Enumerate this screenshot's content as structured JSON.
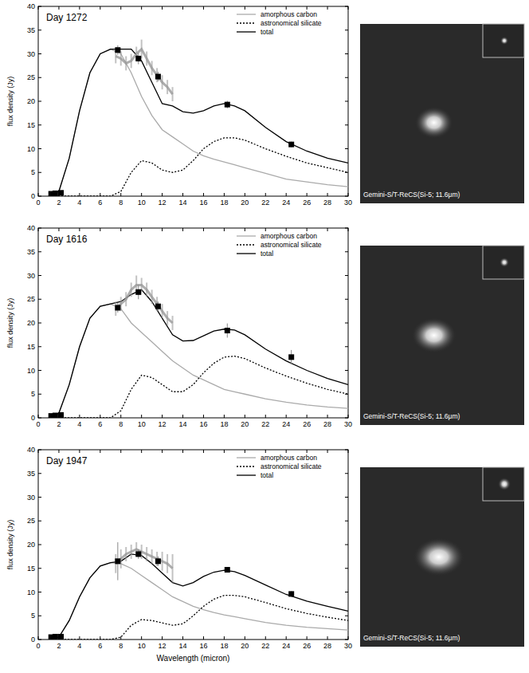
{
  "chart_data": [
    {
      "type": "line",
      "title": "Day 1272",
      "y_label": "flux density (Jy)",
      "xlim": [
        0,
        30
      ],
      "xticks": [
        0,
        2,
        4,
        6,
        8,
        10,
        12,
        14,
        16,
        18,
        20,
        22,
        24,
        26,
        28,
        30
      ],
      "ylim": [
        0,
        40
      ],
      "yticks": [
        0,
        5,
        10,
        15,
        20,
        25,
        30,
        35,
        40
      ],
      "legend": "upper right",
      "annotations": [
        "Gemini-S/T-ReCS(Si-5; 11.6μm)"
      ],
      "series": [
        {
          "name": "amorphous carbon",
          "type": "line",
          "color": "#aaaaaa",
          "line_style": "solid",
          "x": [
            1,
            2,
            3,
            4,
            5,
            6,
            7,
            8,
            9,
            10,
            11,
            12,
            13,
            14,
            15,
            16,
            17,
            18,
            19,
            20,
            22,
            24,
            26,
            28,
            30
          ],
          "values": [
            0,
            1,
            8,
            18,
            26,
            30,
            31,
            30,
            26,
            21,
            17,
            14,
            12.5,
            11,
            9.5,
            8.5,
            7.8,
            7.2,
            6.6,
            6,
            4.8,
            3.6,
            3,
            2.4,
            2
          ]
        },
        {
          "name": "astronomical silicate",
          "type": "line",
          "color": "#000000",
          "line_style": "dotted",
          "x": [
            1,
            2,
            3,
            4,
            5,
            6,
            7,
            8,
            9,
            10,
            11,
            12,
            13,
            14,
            15,
            16,
            17,
            18,
            19,
            20,
            22,
            24,
            26,
            28,
            30
          ],
          "values": [
            0,
            0,
            0,
            0,
            0,
            0,
            0,
            1,
            5,
            7.5,
            7,
            5.5,
            5,
            5.5,
            7.5,
            10,
            11.5,
            12.3,
            12.3,
            11.8,
            10,
            8.4,
            7,
            6,
            5
          ]
        },
        {
          "name": "total",
          "type": "line",
          "color": "#000000",
          "line_style": "solid",
          "x": [
            1,
            2,
            3,
            4,
            5,
            6,
            7,
            8,
            9,
            10,
            11,
            12,
            13,
            14,
            15,
            16,
            17,
            18,
            19,
            20,
            22,
            24,
            26,
            28,
            30
          ],
          "values": [
            0,
            1,
            8,
            18,
            26,
            30,
            31,
            31,
            31,
            28.5,
            24,
            19.5,
            19,
            17.8,
            17.5,
            18,
            19,
            19.5,
            19,
            18,
            14.5,
            11.5,
            9.5,
            8,
            7
          ]
        },
        {
          "type": "line",
          "color": "#999999",
          "line_style": "solid",
          "x": [
            7.5,
            8,
            8.5,
            9,
            9.5,
            10,
            10.5,
            11,
            11.5,
            12,
            12.5,
            13
          ],
          "values": [
            29.5,
            29,
            28,
            28.5,
            30,
            31,
            29,
            27,
            25.5,
            24,
            23,
            21.5
          ],
          "errors": [
            1.5,
            1.5,
            1.5,
            1.5,
            1.5,
            2,
            1.5,
            1.5,
            1.5,
            1.5,
            1.5,
            1.5
          ]
        },
        {
          "type": "scatter",
          "color": "#000000",
          "marker": "square",
          "x": [
            1.25,
            1.65,
            2.2,
            7.7,
            9.7,
            11.6,
            18.3,
            24.5
          ],
          "values": [
            0.5,
            0.6,
            0.7,
            30.8,
            29,
            25.2,
            19.3,
            10.9
          ],
          "errors": [
            0.1,
            0.1,
            0.1,
            1,
            1.2,
            1,
            0.8,
            0.6
          ]
        }
      ]
    },
    {
      "type": "line",
      "title": "Day 1616",
      "y_label": "flux density (Jy)",
      "xlim": [
        0,
        30
      ],
      "xticks": [
        0,
        2,
        4,
        6,
        8,
        10,
        12,
        14,
        16,
        18,
        20,
        22,
        24,
        26,
        28,
        30
      ],
      "ylim": [
        0,
        40
      ],
      "yticks": [
        0,
        5,
        10,
        15,
        20,
        25,
        30,
        35,
        40
      ],
      "legend": "upper right",
      "annotations": [
        "Gemini-S/T-ReCS(Si-5; 11.6μm)"
      ],
      "series": [
        {
          "name": "amorphous carbon",
          "type": "line",
          "color": "#aaaaaa",
          "line_style": "solid",
          "x": [
            1,
            2,
            3,
            4,
            5,
            6,
            7,
            8,
            9,
            10,
            11,
            12,
            13,
            14,
            15,
            16,
            17,
            18,
            19,
            20,
            22,
            24,
            26,
            28,
            30
          ],
          "values": [
            0,
            1,
            7,
            15,
            21,
            23.5,
            24,
            23,
            20,
            18,
            16,
            14,
            12,
            10.5,
            9,
            8,
            7,
            6,
            5.5,
            5,
            4,
            3.3,
            2.7,
            2.3,
            2
          ]
        },
        {
          "name": "astronomical silicate",
          "type": "line",
          "color": "#000000",
          "line_style": "dotted",
          "x": [
            1,
            2,
            3,
            4,
            5,
            6,
            7,
            8,
            9,
            10,
            11,
            12,
            13,
            14,
            15,
            16,
            17,
            18,
            19,
            20,
            22,
            24,
            26,
            28,
            30
          ],
          "values": [
            0,
            0,
            0,
            0,
            0,
            0,
            0,
            1.5,
            6,
            9,
            8.5,
            7,
            5.5,
            5.5,
            7,
            9.5,
            11.5,
            12.8,
            13,
            12.5,
            10.5,
            8.8,
            7.3,
            6,
            5
          ]
        },
        {
          "name": "total",
          "type": "line",
          "color": "#000000",
          "line_style": "solid",
          "x": [
            1,
            2,
            3,
            4,
            5,
            6,
            7,
            8,
            9,
            10,
            11,
            12,
            13,
            14,
            15,
            16,
            17,
            18,
            19,
            20,
            22,
            24,
            26,
            28,
            30
          ],
          "values": [
            0,
            1,
            7,
            15,
            21,
            23.5,
            24,
            24.5,
            26,
            27,
            24.5,
            21,
            17.5,
            16.2,
            16.3,
            17.3,
            18.3,
            18.7,
            18.5,
            17.5,
            14.5,
            12,
            10,
            8.3,
            7
          ]
        },
        {
          "type": "line",
          "color": "#999999",
          "line_style": "solid",
          "x": [
            7.5,
            8,
            8.5,
            9,
            9.5,
            10,
            10.5,
            11,
            11.5,
            12,
            12.5,
            13
          ],
          "values": [
            23,
            24,
            25,
            27,
            28,
            28,
            27,
            25.5,
            24,
            22.5,
            21,
            20
          ],
          "errors": [
            1.5,
            1.5,
            1.5,
            1.5,
            2,
            1.5,
            1.5,
            1.5,
            1.5,
            1.5,
            1.5,
            1.5
          ]
        },
        {
          "type": "scatter",
          "color": "#000000",
          "marker": "square",
          "x": [
            1.25,
            1.65,
            2.2,
            7.7,
            9.7,
            11.6,
            18.3,
            24.5
          ],
          "values": [
            0.4,
            0.5,
            0.6,
            23.2,
            26.5,
            23.5,
            18.4,
            12.8
          ],
          "errors": [
            0.1,
            0.1,
            0.1,
            1,
            1.5,
            1,
            1.5,
            1.5
          ]
        }
      ]
    },
    {
      "type": "line",
      "title": "Day 1947",
      "y_label": "flux density (Jy)",
      "x_label": "Wavelength (micron)",
      "xlim": [
        0,
        30
      ],
      "xticks": [
        0,
        2,
        4,
        6,
        8,
        10,
        12,
        14,
        16,
        18,
        20,
        22,
        24,
        26,
        28,
        30
      ],
      "ylim": [
        0,
        40
      ],
      "yticks": [
        0,
        5,
        10,
        15,
        20,
        25,
        30,
        35,
        40
      ],
      "legend": "upper right",
      "annotations": [
        "Gemini-S/T-ReCS(Si-5; 11.6μm)"
      ],
      "series": [
        {
          "name": "amorphous carbon",
          "type": "line",
          "color": "#aaaaaa",
          "line_style": "solid",
          "x": [
            1,
            2,
            3,
            4,
            5,
            6,
            7,
            8,
            9,
            10,
            11,
            12,
            13,
            14,
            15,
            16,
            17,
            18,
            19,
            20,
            22,
            24,
            26,
            28,
            30
          ],
          "values": [
            0,
            0.5,
            4,
            9,
            13,
            15.5,
            16.2,
            16,
            15,
            13.5,
            12,
            10.5,
            9,
            8,
            7,
            6.3,
            5.7,
            5.2,
            4.8,
            4.4,
            3.6,
            3,
            2.6,
            2.3,
            2
          ]
        },
        {
          "name": "astronomical silicate",
          "type": "line",
          "color": "#000000",
          "line_style": "dotted",
          "x": [
            1,
            2,
            3,
            4,
            5,
            6,
            7,
            8,
            9,
            10,
            11,
            12,
            13,
            14,
            15,
            16,
            17,
            18,
            19,
            20,
            22,
            24,
            26,
            28,
            30
          ],
          "values": [
            0,
            0,
            0,
            0,
            0,
            0,
            0,
            0.5,
            3,
            4.2,
            4,
            3.5,
            3,
            3.3,
            5,
            7,
            8.5,
            9.3,
            9.3,
            9,
            7.8,
            6.5,
            5.5,
            4.7,
            4
          ]
        },
        {
          "name": "total",
          "type": "line",
          "color": "#000000",
          "line_style": "solid",
          "x": [
            1,
            2,
            3,
            4,
            5,
            6,
            7,
            8,
            9,
            10,
            11,
            12,
            13,
            14,
            15,
            16,
            17,
            18,
            19,
            20,
            22,
            24,
            26,
            28,
            30
          ],
          "values": [
            0,
            0.5,
            4,
            9,
            13,
            15.5,
            16.2,
            16.5,
            18,
            17.7,
            16,
            14,
            12,
            11.3,
            12,
            13.3,
            14.2,
            14.6,
            14.3,
            13.5,
            11.5,
            9.5,
            8.1,
            7,
            6
          ]
        },
        {
          "type": "line",
          "color": "#999999",
          "line_style": "solid",
          "x": [
            7.5,
            8,
            8.5,
            9,
            9.5,
            10,
            10.5,
            11,
            11.5,
            12,
            12.5,
            13
          ],
          "values": [
            16,
            17,
            18,
            18.5,
            19,
            18.5,
            18,
            17.5,
            17,
            16.5,
            16,
            15
          ],
          "errors": [
            2,
            2,
            1.5,
            1.5,
            1.5,
            1.5,
            1.5,
            1.5,
            1.5,
            2,
            2,
            3
          ]
        },
        {
          "type": "scatter",
          "color": "#000000",
          "marker": "square",
          "x": [
            1.25,
            1.65,
            2.2,
            7.7,
            9.7,
            11.6,
            18.3,
            24.5
          ],
          "values": [
            0.5,
            0.6,
            0.6,
            16.5,
            18,
            16.5,
            14.7,
            9.6
          ],
          "errors": [
            0.1,
            0.1,
            0.1,
            4,
            1,
            1,
            0.5,
            0.6
          ]
        }
      ]
    }
  ]
}
